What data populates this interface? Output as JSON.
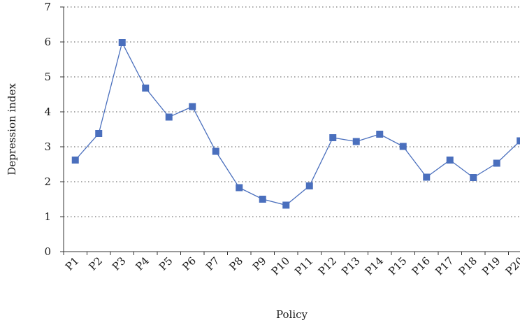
{
  "chart_data": {
    "type": "line",
    "categories": [
      "P1",
      "P2",
      "P3",
      "P4",
      "P5",
      "P6",
      "P7",
      "P8",
      "P9",
      "P10",
      "P11",
      "P12",
      "P13",
      "P14",
      "P15",
      "P16",
      "P17",
      "P18",
      "P19",
      "P20"
    ],
    "series": [
      {
        "values": [
          2.62,
          3.38,
          5.98,
          4.68,
          3.85,
          4.15,
          2.87,
          1.83,
          1.5,
          1.33,
          1.88,
          3.26,
          3.15,
          3.36,
          3.01,
          2.13,
          2.62,
          2.12,
          2.53,
          3.17
        ],
        "color": "#4a6fbd",
        "marker": "square"
      }
    ],
    "title": "",
    "xlabel": "Policy",
    "ylabel": "Depression index",
    "ylim": [
      0,
      7
    ],
    "yticks": [
      0,
      1,
      2,
      3,
      4,
      5,
      6,
      7
    ],
    "grid": "horizontal-dotted"
  }
}
